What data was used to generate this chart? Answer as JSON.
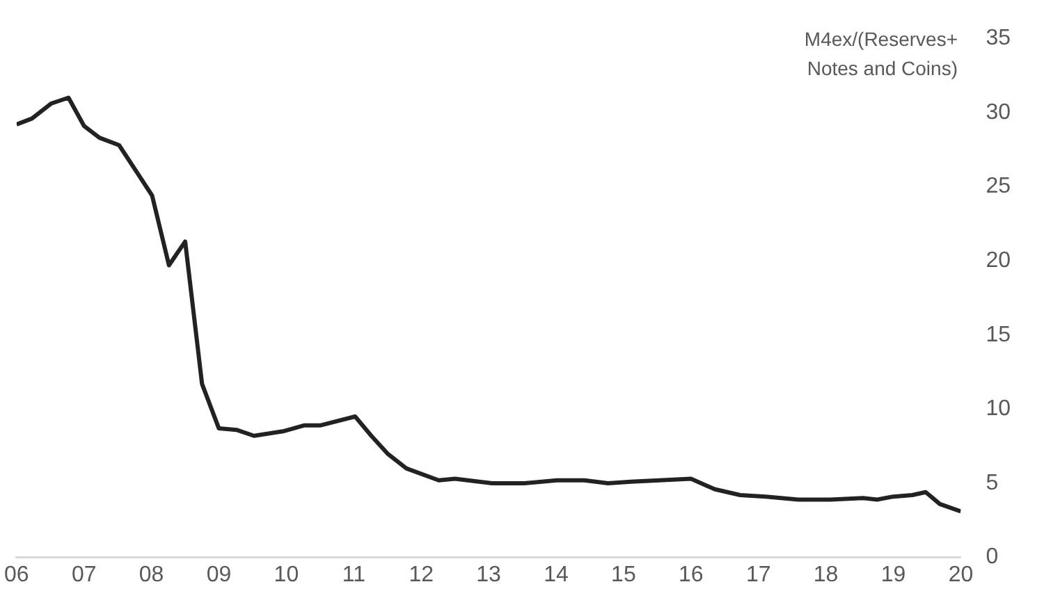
{
  "chart_data": {
    "type": "line",
    "ylabel": "M4ex/(Reserves+ Notes and Coins)",
    "x": [
      2006.0,
      2006.23,
      2006.51,
      2006.77,
      2007.0,
      2007.23,
      2007.52,
      2007.78,
      2008.01,
      2008.26,
      2008.5,
      2008.75,
      2009.0,
      2009.26,
      2009.52,
      2009.95,
      2010.26,
      2010.5,
      2011.02,
      2011.26,
      2011.5,
      2011.78,
      2012.26,
      2012.5,
      2013.05,
      2013.53,
      2014.01,
      2014.42,
      2014.77,
      2015.11,
      2015.53,
      2016.0,
      2016.35,
      2016.73,
      2017.11,
      2017.59,
      2018.07,
      2018.55,
      2018.76,
      2019.0,
      2019.28,
      2019.48,
      2019.69,
      2020.0
    ],
    "series": [
      {
        "color": "#222222",
        "values": [
          29.2,
          29.6,
          30.6,
          31.0,
          29.1,
          28.3,
          27.8,
          26.0,
          24.4,
          19.7,
          21.3,
          11.7,
          8.7,
          8.6,
          8.2,
          8.5,
          8.9,
          8.9,
          9.5,
          8.2,
          7.0,
          6.0,
          5.2,
          5.3,
          5.0,
          5.0,
          5.2,
          5.2,
          5.0,
          5.1,
          5.2,
          5.3,
          4.6,
          4.2,
          4.1,
          3.9,
          3.9,
          4.0,
          3.9,
          4.1,
          4.2,
          4.4,
          3.6,
          3.1
        ]
      }
    ],
    "xlim": [
      2006,
      2020
    ],
    "xticks": [
      {
        "value": 2006,
        "label": "06"
      },
      {
        "value": 2007,
        "label": "07"
      },
      {
        "value": 2008,
        "label": "08"
      },
      {
        "value": 2009,
        "label": "09"
      },
      {
        "value": 2010,
        "label": "10"
      },
      {
        "value": 2011,
        "label": "11"
      },
      {
        "value": 2012,
        "label": "12"
      },
      {
        "value": 2013,
        "label": "13"
      },
      {
        "value": 2014,
        "label": "14"
      },
      {
        "value": 2015,
        "label": "15"
      },
      {
        "value": 2016,
        "label": "16"
      },
      {
        "value": 2017,
        "label": "17"
      },
      {
        "value": 2018,
        "label": "18"
      },
      {
        "value": 2019,
        "label": "19"
      },
      {
        "value": 2020,
        "label": "20"
      }
    ],
    "ylim": [
      0,
      35
    ],
    "yticks": [
      0,
      5,
      10,
      15,
      20,
      25,
      30,
      35
    ],
    "grid": false,
    "legend": false,
    "marker": "none",
    "line_style": "solid"
  }
}
